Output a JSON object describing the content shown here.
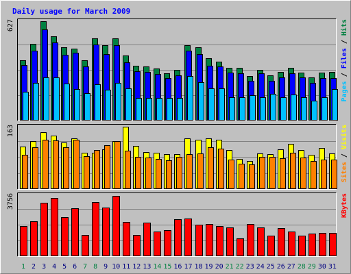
{
  "chart_data": {
    "type": "bar",
    "title": "Daily usage for March 2009",
    "categories": [
      "1",
      "2",
      "3",
      "4",
      "5",
      "6",
      "7",
      "8",
      "9",
      "10",
      "11",
      "12",
      "13",
      "14",
      "15",
      "16",
      "17",
      "18",
      "19",
      "20",
      "21",
      "22",
      "23",
      "24",
      "25",
      "26",
      "27",
      "28",
      "29",
      "30",
      "31"
    ],
    "weekend_days": [
      "1",
      "7",
      "8",
      "14",
      "15",
      "21",
      "22",
      "28",
      "29"
    ],
    "colors": {
      "hits": "#008040",
      "files": "#0000ff",
      "pages": "#00c0ff",
      "visits": "#ffff00",
      "sites": "#ff8000",
      "kbytes": "#ff0000",
      "title": "#0000ff",
      "weekday_label": "#000080",
      "weekend_label": "#008040"
    },
    "panels": [
      {
        "id": "hits",
        "max_label": "627",
        "ymax": 627,
        "axis_labels": [
          {
            "text": "Pages",
            "color": "#00c0ff"
          },
          {
            "text": " / ",
            "color": "#000000"
          },
          {
            "text": "Files",
            "color": "#0000ff"
          },
          {
            "text": " / ",
            "color": "#000000"
          },
          {
            "text": "Hits",
            "color": "#008040"
          }
        ],
        "series": [
          {
            "name": "Hits",
            "color": "#008040",
            "values": [
              380,
              485,
              627,
              530,
              460,
              455,
              380,
              520,
              475,
              520,
              410,
              345,
              340,
              325,
              295,
              320,
              475,
              460,
              390,
              370,
              330,
              330,
              280,
              320,
              285,
              305,
              330,
              300,
              270,
              300,
              305
            ]
          },
          {
            "name": "Files",
            "color": "#0000ff",
            "values": [
              350,
              440,
              575,
              490,
              415,
              425,
              340,
              480,
              420,
              475,
              365,
              310,
              305,
              290,
              265,
              285,
              440,
              420,
              345,
              340,
              300,
              295,
              250,
              295,
              250,
              270,
              295,
              270,
              235,
              265,
              265
            ]
          },
          {
            "name": "Pages",
            "color": "#00c0ff",
            "values": [
              180,
              235,
              270,
              270,
              230,
              195,
              170,
              225,
              190,
              235,
              200,
              140,
              140,
              140,
              140,
              140,
              280,
              240,
              200,
              200,
              145,
              145,
              155,
              145,
              165,
              145,
              160,
              145,
              120,
              145,
              195
            ]
          }
        ]
      },
      {
        "id": "visits",
        "max_label": "163",
        "ymax": 163,
        "axis_labels": [
          {
            "text": "Sites",
            "color": "#ff8000"
          },
          {
            "text": " / ",
            "color": "#000000"
          },
          {
            "text": "Visits",
            "color": "#ffff00"
          }
        ],
        "series": [
          {
            "name": "Visits",
            "color": "#ffff00",
            "values": [
              110,
              125,
              148,
              140,
              122,
              132,
              95,
              95,
              104,
              125,
              163,
              112,
              96,
              95,
              90,
              90,
              133,
              128,
              132,
              128,
              102,
              78,
              72,
              92,
              90,
              103,
              118,
              102,
              88,
              107,
              92
            ]
          },
          {
            "name": "Sites",
            "color": "#ff8000",
            "values": [
              88,
              108,
              128,
              126,
              108,
              128,
              86,
              102,
              115,
              125,
              100,
              83,
              82,
              78,
              75,
              83,
              90,
              92,
              108,
              105,
              76,
              66,
              64,
              84,
              84,
              80,
              94,
              82,
              72,
              76,
              76
            ]
          }
        ]
      },
      {
        "id": "kbytes",
        "max_label": "3756",
        "ymax": 3756,
        "axis_labels": [
          {
            "text": "KBytes",
            "color": "#ff0000"
          }
        ],
        "series": [
          {
            "name": "KBytes",
            "color": "#ff0000",
            "values": [
              1830,
              2120,
              3300,
              3600,
              2400,
              2930,
              1300,
              3310,
              3000,
              3700,
              2100,
              1300,
              2050,
              1500,
              1600,
              2250,
              2300,
              1900,
              1950,
              1840,
              1770,
              1050,
              1950,
              1770,
              1250,
              1700,
              1500,
              1240,
              1350,
              1400,
              1400
            ]
          }
        ]
      }
    ]
  }
}
